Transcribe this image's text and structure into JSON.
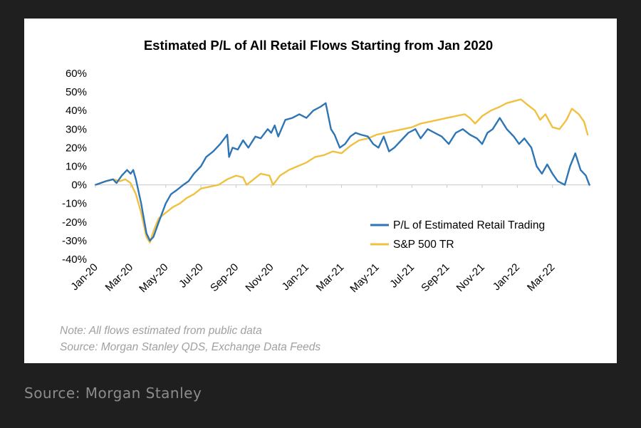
{
  "caption": "Source: Morgan Stanley",
  "chart_data": {
    "type": "line",
    "title": "Estimated P/L of All Retail Flows Starting from Jan 2020",
    "xlabel": "",
    "ylabel": "",
    "ylim": [
      -40,
      60
    ],
    "yticks": [
      "60%",
      "50%",
      "40%",
      "30%",
      "20%",
      "10%",
      "0%",
      "-10%",
      "-20%",
      "-30%",
      "-40%"
    ],
    "ytick_values": [
      60,
      50,
      40,
      30,
      20,
      10,
      0,
      -10,
      -20,
      -30,
      -40
    ],
    "xticks": [
      "Jan-20",
      "Mar-20",
      "May-20",
      "Jul-20",
      "Sep-20",
      "Nov-20",
      "Jan-21",
      "Mar-21",
      "May-21",
      "Jul-21",
      "Sep-21",
      "Nov-21",
      "Jan-22",
      "Mar-22"
    ],
    "xtick_values": [
      0,
      2,
      4,
      6,
      8,
      10,
      12,
      14,
      16,
      18,
      20,
      22,
      24,
      26
    ],
    "xlim": [
      0,
      28.2
    ],
    "legend_position": "lower-right",
    "series": [
      {
        "name": "P/L of Estimated Retail Trading",
        "color": "#2e75b6",
        "x": [
          0,
          0.3,
          0.6,
          1.0,
          1.2,
          1.5,
          1.8,
          2.0,
          2.15,
          2.3,
          2.6,
          2.9,
          3.1,
          3.3,
          3.6,
          4.0,
          4.3,
          4.6,
          5.0,
          5.3,
          5.6,
          6.0,
          6.3,
          6.7,
          7.1,
          7.5,
          7.6,
          7.8,
          8.1,
          8.4,
          8.7,
          9.1,
          9.4,
          9.8,
          10.0,
          10.2,
          10.4,
          10.8,
          11.2,
          11.6,
          12.0,
          12.4,
          12.8,
          13.1,
          13.4,
          13.6,
          13.9,
          14.2,
          14.5,
          14.8,
          15.1,
          15.5,
          15.8,
          16.1,
          16.4,
          16.7,
          17.0,
          17.4,
          17.8,
          18.2,
          18.5,
          18.9,
          19.3,
          19.7,
          20.1,
          20.5,
          20.9,
          21.3,
          21.7,
          22.0,
          22.3,
          22.6,
          23.0,
          23.4,
          23.8,
          24.1,
          24.4,
          24.8,
          25.1,
          25.4,
          25.7,
          26.0,
          26.3,
          26.7,
          27.0,
          27.3,
          27.6,
          27.9,
          28.1
        ],
        "y": [
          0,
          1,
          2,
          3,
          1,
          5,
          8,
          6,
          8,
          3,
          -10,
          -26,
          -30,
          -28,
          -20,
          -10,
          -5,
          -3,
          0,
          2,
          6,
          10,
          15,
          18,
          22,
          27,
          15,
          20,
          19,
          24,
          20,
          26,
          25,
          30,
          28,
          32,
          26,
          35,
          36,
          38,
          36,
          40,
          42,
          44,
          30,
          27,
          20,
          22,
          26,
          28,
          27,
          26,
          22,
          20,
          26,
          18,
          20,
          24,
          28,
          30,
          25,
          30,
          28,
          26,
          22,
          28,
          30,
          27,
          25,
          22,
          28,
          30,
          36,
          30,
          26,
          22,
          25,
          20,
          10,
          6,
          11,
          6,
          2,
          0,
          10,
          17,
          8,
          5,
          0
        ]
      },
      {
        "name": "S&P 500 TR",
        "color": "#f0c040",
        "x": [
          0,
          0.3,
          0.6,
          1.0,
          1.4,
          1.7,
          2.0,
          2.3,
          2.6,
          2.9,
          3.1,
          3.3,
          3.6,
          4.0,
          4.4,
          4.8,
          5.2,
          5.6,
          6.0,
          6.5,
          7.0,
          7.5,
          8.0,
          8.4,
          8.6,
          9.0,
          9.4,
          9.9,
          10.1,
          10.5,
          11.0,
          11.5,
          12.0,
          12.5,
          13.0,
          13.5,
          14.0,
          14.5,
          15.0,
          15.5,
          16.0,
          16.5,
          17.0,
          17.5,
          18.0,
          18.5,
          19.0,
          19.5,
          20.0,
          20.5,
          21.0,
          21.3,
          21.6,
          22.0,
          22.5,
          23.0,
          23.4,
          23.8,
          24.2,
          24.6,
          25.0,
          25.3,
          25.6,
          26.0,
          26.4,
          26.8,
          27.1,
          27.5,
          27.8,
          28.0
        ],
        "y": [
          0,
          1,
          2,
          3,
          2,
          3,
          1,
          -5,
          -15,
          -28,
          -31,
          -25,
          -18,
          -15,
          -12,
          -10,
          -7,
          -5,
          -2,
          -1,
          0,
          3,
          5,
          4,
          0,
          3,
          6,
          5,
          0,
          5,
          8,
          10,
          12,
          15,
          16,
          18,
          17,
          21,
          24,
          25,
          27,
          28,
          29,
          30,
          31,
          33,
          34,
          35,
          36,
          37,
          38,
          36,
          33,
          37,
          40,
          42,
          44,
          45,
          46,
          43,
          40,
          35,
          38,
          31,
          30,
          35,
          41,
          38,
          34,
          27
        ]
      }
    ],
    "note_lines": [
      "Note:  All flows estimated from public data",
      "Source: Morgan Stanley QDS,  Exchange Data Feeds"
    ]
  }
}
